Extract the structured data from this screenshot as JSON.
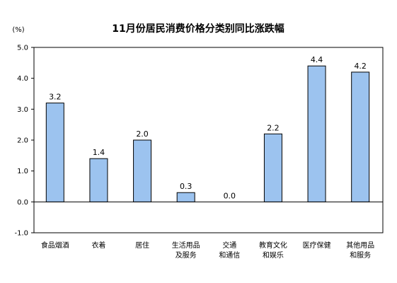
{
  "chart_data": {
    "type": "bar",
    "title": "11月份居民消费价格分类别同比涨跌幅",
    "unit_label": "(%)",
    "categories": [
      [
        "食品烟酒"
      ],
      [
        "衣着"
      ],
      [
        "居住"
      ],
      [
        "生活用品",
        "及服务"
      ],
      [
        "交通",
        "和通信"
      ],
      [
        "教育文化",
        "和娱乐"
      ],
      [
        "医疗保健"
      ],
      [
        "其他用品",
        "和服务"
      ]
    ],
    "values": [
      3.2,
      1.4,
      2.0,
      0.3,
      0.0,
      2.2,
      4.4,
      4.2
    ],
    "value_labels": [
      "3.2",
      "1.4",
      "2.0",
      "0.3",
      "0.0",
      "2.2",
      "4.4",
      "4.2"
    ],
    "ylim": [
      -1.0,
      5.0
    ],
    "yticks": [
      -1.0,
      0.0,
      1.0,
      2.0,
      3.0,
      4.0,
      5.0
    ],
    "ytick_labels": [
      "-1.0",
      "0.0",
      "1.0",
      "2.0",
      "3.0",
      "4.0",
      "5.0"
    ],
    "grid": false,
    "colors": {
      "bar_fill": "#9cc3ef",
      "bar_stroke": "#000000"
    }
  }
}
